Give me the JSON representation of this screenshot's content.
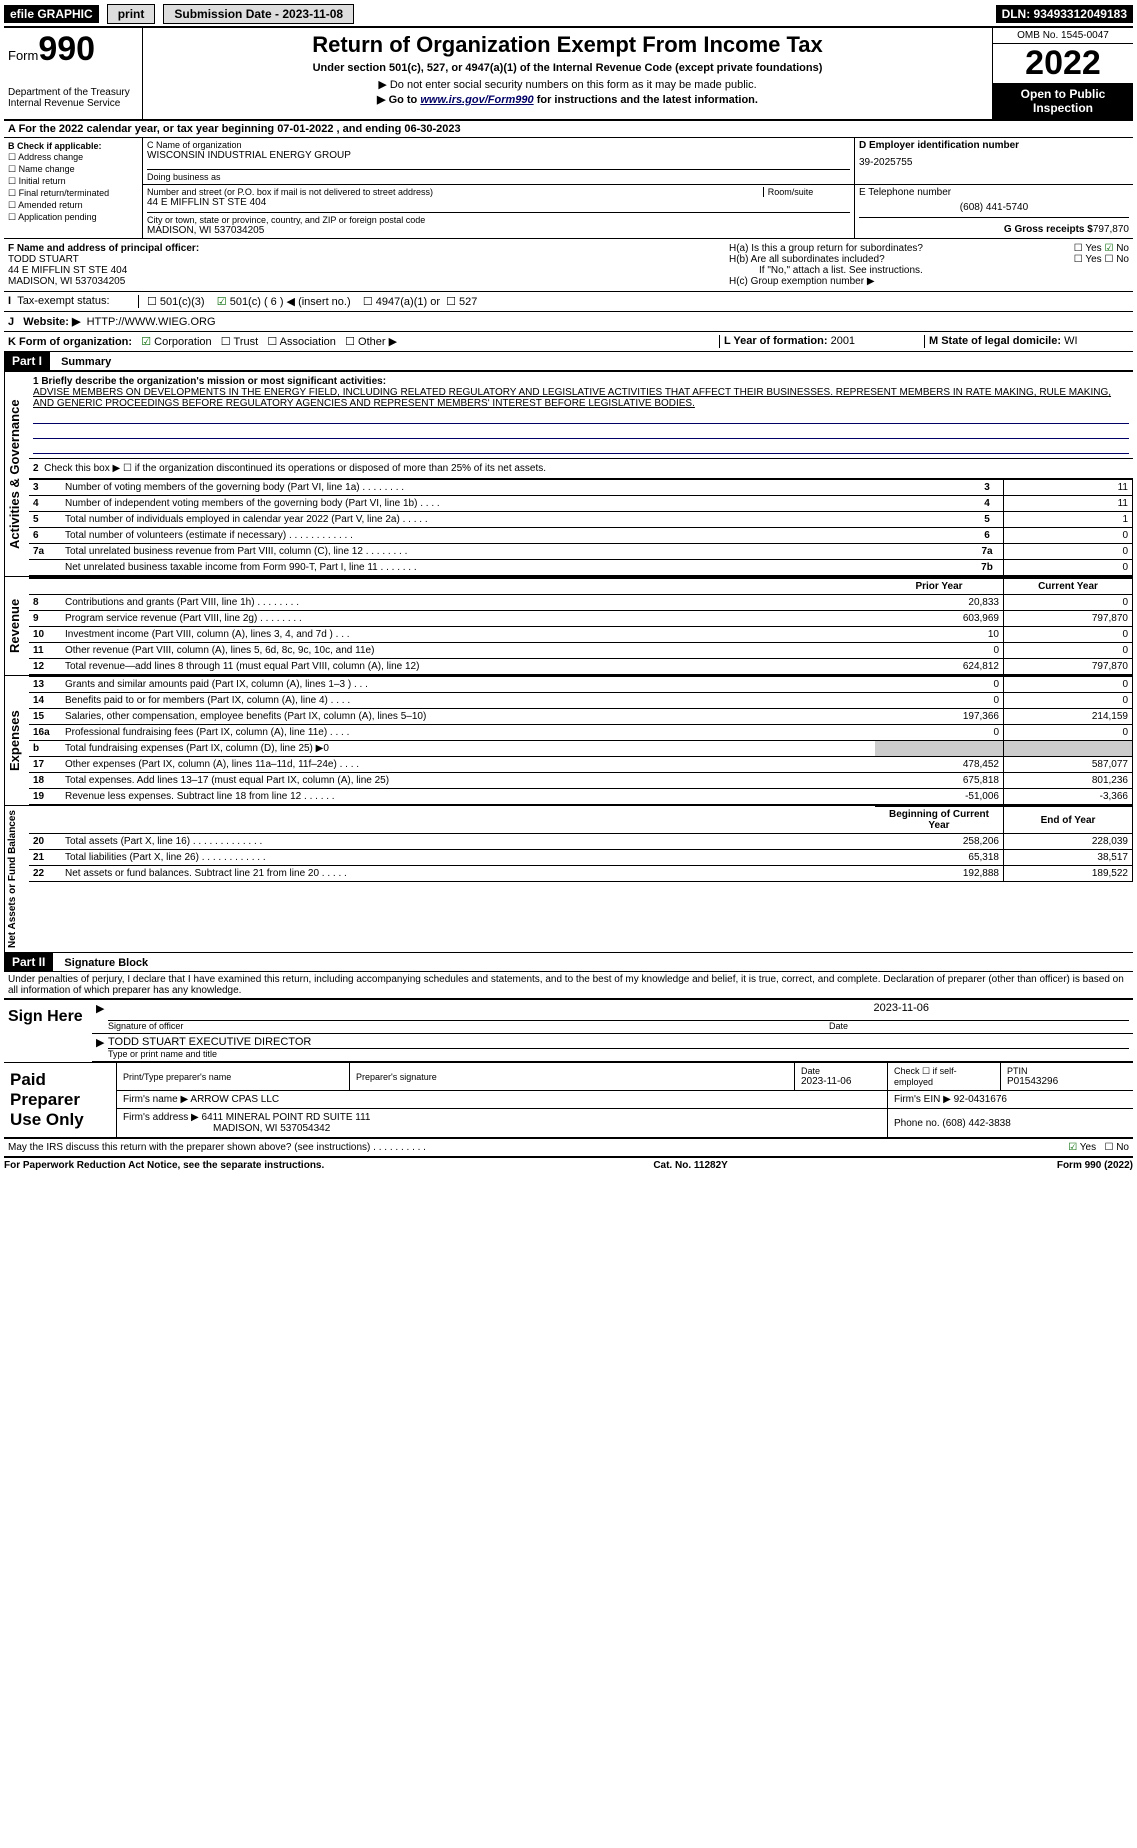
{
  "topbar": {
    "efile": "efile GRAPHIC",
    "print": "print",
    "submission": "Submission Date - 2023-11-08",
    "dln": "DLN: 93493312049183"
  },
  "header": {
    "form_word": "Form",
    "form_num": "990",
    "dept": "Department of the Treasury",
    "irs": "Internal Revenue Service",
    "title": "Return of Organization Exempt From Income Tax",
    "subtitle": "Under section 501(c), 527, or 4947(a)(1) of the Internal Revenue Code (except private foundations)",
    "note1": "▶ Do not enter social security numbers on this form as it may be made public.",
    "note2_pre": "▶ Go to ",
    "note2_link": "www.irs.gov/Form990",
    "note2_post": " for instructions and the latest information.",
    "omb": "OMB No. 1545-0047",
    "year": "2022",
    "open": "Open to Public Inspection"
  },
  "ty": {
    "line": "A For the 2022 calendar year, or tax year beginning 07-01-2022      , and ending 06-30-2023"
  },
  "B": {
    "label": "B Check if applicable:",
    "items": [
      "Address change",
      "Name change",
      "Initial return",
      "Final return/terminated",
      "Amended return",
      "Application pending"
    ]
  },
  "C": {
    "name_lbl": "C Name of organization",
    "name": "WISCONSIN INDUSTRIAL ENERGY GROUP",
    "dba_lbl": "Doing business as",
    "dba": "",
    "street_lbl": "Number and street (or P.O. box if mail is not delivered to street address)",
    "room_lbl": "Room/suite",
    "street": "44 E MIFFLIN ST STE 404",
    "city_lbl": "City or town, state or province, country, and ZIP or foreign postal code",
    "city": "MADISON, WI  537034205"
  },
  "D": {
    "lbl": "D Employer identification number",
    "val": "39-2025755"
  },
  "E": {
    "lbl": "E Telephone number",
    "val": "(608) 441-5740"
  },
  "G": {
    "lbl": "G Gross receipts $",
    "val": "797,870"
  },
  "F": {
    "lbl": "F  Name and address of principal officer:",
    "name": "TODD STUART",
    "addr1": "44 E MIFFLIN ST STE 404",
    "addr2": "MADISON, WI  537034205"
  },
  "H": {
    "a": "H(a)  Is this a group return for subordinates?",
    "b": "H(b)  Are all subordinates included?",
    "b_note": "If \"No,\" attach a list. See instructions.",
    "c": "H(c)  Group exemption number ▶",
    "yes": "Yes",
    "no": "No"
  },
  "I": {
    "lbl": "Tax-exempt status:",
    "opts": [
      "501(c)(3)",
      "501(c) ( 6 ) ◀ (insert no.)",
      "4947(a)(1) or",
      "527"
    ]
  },
  "J": {
    "lbl": "Website: ▶",
    "val": "HTTP://WWW.WIEG.ORG"
  },
  "K": {
    "lbl": "K Form of organization:",
    "opts": [
      "Corporation",
      "Trust",
      "Association",
      "Other ▶"
    ]
  },
  "L": {
    "lbl": "L Year of formation:",
    "val": "2001"
  },
  "M": {
    "lbl": "M State of legal domicile:",
    "val": "WI"
  },
  "partI": {
    "title": "Part I",
    "subtitle": "Summary",
    "side_gov": "Activities & Governance",
    "side_rev": "Revenue",
    "side_exp": "Expenses",
    "side_net": "Net Assets or Fund Balances",
    "q1": "1  Briefly describe the organization's mission or most significant activities:",
    "mission": "ADVISE MEMBERS ON DEVELOPMENTS IN THE ENERGY FIELD, INCLUDING RELATED REGULATORY AND LEGISLATIVE ACTIVITIES THAT AFFECT THEIR BUSINESSES. REPRESENT MEMBERS IN RATE MAKING, RULE MAKING, AND GENERIC PROCEEDINGS BEFORE REGULATORY AGENCIES AND REPRESENT MEMBERS' INTEREST BEFORE LEGISLATIVE BODIES.",
    "q2": "Check this box ▶ ☐  if the organization discontinued its operations or disposed of more than 25% of its net assets.",
    "rows_gov": [
      {
        "n": "3",
        "d": "Number of voting members of the governing body (Part VI, line 1a)   .    .    .    .    .    .    .    .",
        "b": "3",
        "v": "11"
      },
      {
        "n": "4",
        "d": "Number of independent voting members of the governing body (Part VI, line 1b)    .    .    .    .",
        "b": "4",
        "v": "11"
      },
      {
        "n": "5",
        "d": "Total number of individuals employed in calendar year 2022 (Part V, line 2a)   .    .    .    .    .",
        "b": "5",
        "v": "1"
      },
      {
        "n": "6",
        "d": "Total number of volunteers (estimate if necessary)    .    .    .    .    .    .    .    .    .    .    .    .",
        "b": "6",
        "v": "0"
      },
      {
        "n": "7a",
        "d": "Total unrelated business revenue from Part VIII, column (C), line 12   .    .    .    .    .    .    .    .",
        "b": "7a",
        "v": "0"
      },
      {
        "n": "",
        "d": "Net unrelated business taxable income from Form 990-T, Part I, line 11    .    .    .    .    .    .    .",
        "b": "7b",
        "v": "0"
      }
    ],
    "head_prior": "Prior Year",
    "head_curr": "Current Year",
    "rows_rev": [
      {
        "n": "8",
        "d": "Contributions and grants (Part VIII, line 1h)   .    .    .    .    .    .    .    .",
        "p": "20,833",
        "c": "0"
      },
      {
        "n": "9",
        "d": "Program service revenue (Part VIII, line 2g)   .    .    .    .    .    .    .    .",
        "p": "603,969",
        "c": "797,870"
      },
      {
        "n": "10",
        "d": "Investment income (Part VIII, column (A), lines 3, 4, and 7d )   .    .    .",
        "p": "10",
        "c": "0"
      },
      {
        "n": "11",
        "d": "Other revenue (Part VIII, column (A), lines 5, 6d, 8c, 9c, 10c, and 11e)",
        "p": "0",
        "c": "0"
      },
      {
        "n": "12",
        "d": "Total revenue—add lines 8 through 11 (must equal Part VIII, column (A), line 12)",
        "p": "624,812",
        "c": "797,870"
      }
    ],
    "rows_exp": [
      {
        "n": "13",
        "d": "Grants and similar amounts paid (Part IX, column (A), lines 1–3 )   .    .    .",
        "p": "0",
        "c": "0"
      },
      {
        "n": "14",
        "d": "Benefits paid to or for members (Part IX, column (A), line 4)   .    .    .    .",
        "p": "0",
        "c": "0"
      },
      {
        "n": "15",
        "d": "Salaries, other compensation, employee benefits (Part IX, column (A), lines 5–10)",
        "p": "197,366",
        "c": "214,159"
      },
      {
        "n": "16a",
        "d": "Professional fundraising fees (Part IX, column (A), line 11e)   .    .    .    .",
        "p": "0",
        "c": "0"
      },
      {
        "n": "b",
        "d": "Total fundraising expenses (Part IX, column (D), line 25) ▶0",
        "p": "",
        "c": "",
        "gray": true
      },
      {
        "n": "17",
        "d": "Other expenses (Part IX, column (A), lines 11a–11d, 11f–24e)   .    .    .    .",
        "p": "478,452",
        "c": "587,077"
      },
      {
        "n": "18",
        "d": "Total expenses. Add lines 13–17 (must equal Part IX, column (A), line 25)",
        "p": "675,818",
        "c": "801,236"
      },
      {
        "n": "19",
        "d": "Revenue less expenses. Subtract line 18 from line 12   .    .    .    .    .    .",
        "p": "-51,006",
        "c": "-3,366"
      }
    ],
    "head_begin": "Beginning of Current Year",
    "head_end": "End of Year",
    "rows_net": [
      {
        "n": "20",
        "d": "Total assets (Part X, line 16)   .    .    .    .    .    .    .    .    .    .    .    .    .",
        "p": "258,206",
        "c": "228,039"
      },
      {
        "n": "21",
        "d": "Total liabilities (Part X, line 26)   .    .    .    .    .    .    .    .    .    .    .    .",
        "p": "65,318",
        "c": "38,517"
      },
      {
        "n": "22",
        "d": "Net assets or fund balances. Subtract line 21 from line 20   .    .    .    .    .",
        "p": "192,888",
        "c": "189,522"
      }
    ]
  },
  "partII": {
    "title": "Part II",
    "subtitle": "Signature Block",
    "decl": "Under penalties of perjury, I declare that I have examined this return, including accompanying schedules and statements, and to the best of my knowledge and belief, it is true, correct, and complete. Declaration of preparer (other than officer) is based on all information of which preparer has any knowledge."
  },
  "sign": {
    "here": "Sign Here",
    "sig_lbl": "Signature of officer",
    "date_lbl": "Date",
    "date": "2023-11-06",
    "name": "TODD STUART  EXECUTIVE DIRECTOR",
    "name_lbl": "Type or print name and title"
  },
  "paid": {
    "title": "Paid Preparer Use Only",
    "h_name": "Print/Type preparer's name",
    "h_sig": "Preparer's signature",
    "h_date": "Date",
    "date": "2023-11-06",
    "h_check": "Check ☐ if self-employed",
    "h_ptin": "PTIN",
    "ptin": "P01543296",
    "firm_lbl": "Firm's name    ▶",
    "firm": "ARROW CPAS LLC",
    "ein_lbl": "Firm's EIN ▶",
    "ein": "92-0431676",
    "addr_lbl": "Firm's address ▶",
    "addr": "6411 MINERAL POINT RD SUITE 111",
    "addr2": "MADISON, WI  537054342",
    "phone_lbl": "Phone no.",
    "phone": "(608) 442-3838",
    "discuss": "May the IRS discuss this return with the preparer shown above? (see instructions)   .    .    .    .    .    .    .    .    .    .",
    "yes": "Yes",
    "no": "No"
  },
  "footer": {
    "left": "For Paperwork Reduction Act Notice, see the separate instructions.",
    "mid": "Cat. No. 11282Y",
    "right": "Form 990 (2022)"
  }
}
